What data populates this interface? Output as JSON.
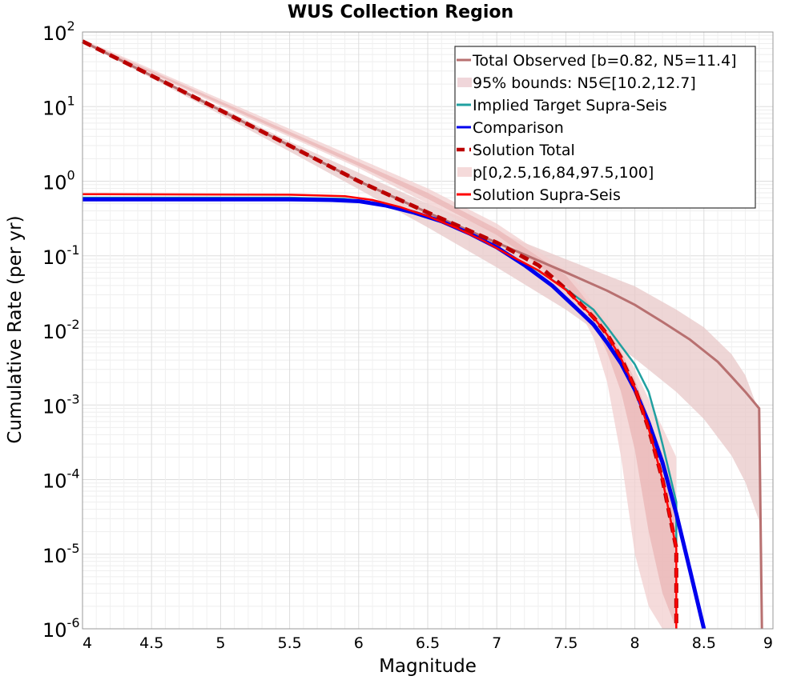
{
  "chart_data": {
    "type": "line",
    "title": "WUS Collection Region",
    "xlabel": "Magnitude",
    "ylabel": "Cumulative Rate (per yr)",
    "xlim": [
      4,
      9
    ],
    "ylim": [
      1e-06,
      100
    ],
    "yscale": "log",
    "grid": true,
    "legend_position": "top-right",
    "x_ticks": [
      "4",
      "4.5",
      "5",
      "5.5",
      "6",
      "6.5",
      "7",
      "7.5",
      "8",
      "8.5",
      "9"
    ],
    "y_ticks": [
      {
        "base": "10",
        "exp": "-6"
      },
      {
        "base": "10",
        "exp": "-5"
      },
      {
        "base": "10",
        "exp": "-4"
      },
      {
        "base": "10",
        "exp": "-3"
      },
      {
        "base": "10",
        "exp": "-2"
      },
      {
        "base": "10",
        "exp": "-1"
      },
      {
        "base": "10",
        "exp": "0"
      },
      {
        "base": "10",
        "exp": "1"
      },
      {
        "base": "10",
        "exp": "2"
      }
    ],
    "bands": [
      {
        "name": "95% bounds: N5∈[10.2,12.7]",
        "color": "#e8c8c8",
        "x": [
          4.0,
          4.5,
          5.0,
          5.5,
          6.0,
          6.5,
          7.0,
          7.5,
          8.0,
          8.3,
          8.5,
          8.7,
          8.8,
          8.9
        ],
        "low": [
          72,
          24,
          7.8,
          2.5,
          0.78,
          0.24,
          0.07,
          0.019,
          0.0042,
          0.0015,
          0.00065,
          0.00021,
          9.2e-05,
          2.8e-05
        ],
        "high": [
          78,
          27,
          9.7,
          3.4,
          1.3,
          0.5,
          0.21,
          0.09,
          0.039,
          0.019,
          0.011,
          0.0048,
          0.0025,
          0.0008
        ]
      },
      {
        "name": "p[0,2.5,16,84,97.5,100]",
        "color": "#f2cfcf",
        "x": [
          4.0,
          6.0,
          6.5,
          7.0,
          7.5,
          7.6,
          7.7,
          7.8,
          7.9,
          8.0,
          8.1,
          8.2,
          8.3
        ],
        "low": [
          70,
          1.5,
          0.5,
          0.16,
          0.03,
          0.018,
          0.008,
          0.002,
          0.0002,
          1e-05,
          2e-06,
          1e-06,
          1e-06
        ],
        "high": [
          80,
          2.0,
          0.8,
          0.27,
          0.065,
          0.04,
          0.023,
          0.013,
          0.007,
          0.003,
          0.0012,
          0.0005,
          0.0002
        ]
      },
      {
        "name": "p[0,2.5,16,84,97.5,100] inner",
        "color": "#eab6b6",
        "x": [
          4.0,
          6.0,
          6.5,
          7.0,
          7.5,
          7.6,
          7.7,
          7.8,
          7.9,
          8.0,
          8.1,
          8.2,
          8.3
        ],
        "low": [
          73,
          1.6,
          0.58,
          0.19,
          0.04,
          0.025,
          0.013,
          0.005,
          0.0015,
          0.00025,
          2e-05,
          3e-06,
          1e-06
        ],
        "high": [
          77,
          1.8,
          0.7,
          0.23,
          0.055,
          0.033,
          0.019,
          0.01,
          0.0052,
          0.0022,
          0.0007,
          0.00022,
          5e-05
        ]
      }
    ],
    "series": [
      {
        "name": "Total Observed [b=0.82, N5=11.4]",
        "color": "#b87070",
        "width": 3,
        "dash": "",
        "x": [
          4.0,
          4.5,
          5.0,
          5.5,
          6.0,
          6.5,
          7.0,
          7.5,
          7.8,
          8.0,
          8.2,
          8.4,
          8.6,
          8.7,
          8.8,
          8.9,
          8.92
        ],
        "y": [
          75,
          26,
          8.9,
          3.0,
          1.0,
          0.38,
          0.15,
          0.06,
          0.034,
          0.022,
          0.013,
          0.0075,
          0.0038,
          0.0024,
          0.0015,
          0.0009,
          1e-06
        ]
      },
      {
        "name": "Implied Target Supra-Seis",
        "color": "#20a0a0",
        "width": 2.5,
        "dash": "",
        "x": [
          4.0,
          5.5,
          5.9,
          6.1,
          6.3,
          6.5,
          6.7,
          6.9,
          7.1,
          7.3,
          7.5,
          7.7,
          7.8,
          7.9,
          8.0,
          8.1,
          8.15,
          8.2,
          8.3,
          8.3
        ],
        "y": [
          0.6,
          0.6,
          0.58,
          0.52,
          0.42,
          0.33,
          0.24,
          0.16,
          0.1,
          0.063,
          0.036,
          0.019,
          0.011,
          0.0062,
          0.0035,
          0.0015,
          0.0007,
          0.0003,
          5e-05,
          1.4e-05
        ]
      },
      {
        "name": "Comparison",
        "color": "#0000ee",
        "width": 5,
        "dash": "",
        "x": [
          4.0,
          5.5,
          5.8,
          6.0,
          6.2,
          6.4,
          6.6,
          6.8,
          7.0,
          7.2,
          7.4,
          7.6,
          7.7,
          7.8,
          7.9,
          8.0,
          8.1,
          8.2,
          8.3,
          8.4,
          8.5
        ],
        "y": [
          0.57,
          0.57,
          0.56,
          0.54,
          0.47,
          0.38,
          0.29,
          0.2,
          0.13,
          0.075,
          0.04,
          0.018,
          0.012,
          0.0068,
          0.0036,
          0.0016,
          0.00058,
          0.00017,
          3.5e-05,
          6e-06,
          1e-06
        ]
      },
      {
        "name": "Solution Total",
        "color": "#bb0000",
        "width": 5,
        "dash": "12,7",
        "x": [
          4.0,
          4.5,
          5.0,
          5.5,
          6.0,
          6.5,
          7.0,
          7.3,
          7.5,
          7.7,
          7.8,
          7.9,
          8.0,
          8.1,
          8.2,
          8.3,
          8.3
        ],
        "y": [
          75,
          26,
          8.9,
          3.0,
          1.0,
          0.38,
          0.15,
          0.075,
          0.036,
          0.015,
          0.0088,
          0.0043,
          0.0017,
          0.00048,
          0.0001,
          1.2e-05,
          1e-06
        ]
      },
      {
        "name": "Solution Supra-Seis",
        "color": "#ff0000",
        "width": 2.5,
        "dash": "",
        "x": [
          4.0,
          5.5,
          5.9,
          6.1,
          6.3,
          6.5,
          6.7,
          6.9,
          7.1,
          7.3,
          7.5,
          7.7,
          7.8,
          7.9,
          8.0,
          8.1,
          8.2,
          8.3,
          8.3
        ],
        "y": [
          0.67,
          0.66,
          0.63,
          0.56,
          0.45,
          0.34,
          0.24,
          0.16,
          0.1,
          0.064,
          0.035,
          0.015,
          0.0087,
          0.0042,
          0.0017,
          0.00048,
          0.0001,
          1.2e-05,
          1e-06
        ]
      }
    ],
    "legend": [
      {
        "label": "Total Observed [b=0.82, N5=11.4]",
        "kind": "line",
        "color": "#b87070",
        "dash": ""
      },
      {
        "label": "95% bounds: N5∈[10.2,12.7]",
        "kind": "patch",
        "color": "#f0d6da",
        "dash": ""
      },
      {
        "label": "Implied Target Supra-Seis",
        "kind": "line",
        "color": "#20a0a0",
        "dash": ""
      },
      {
        "label": "Comparison",
        "kind": "line",
        "color": "#0000ee",
        "dash": ""
      },
      {
        "label": "Solution Total",
        "kind": "line",
        "color": "#bb0000",
        "dash": "10,6"
      },
      {
        "label": "p[0,2.5,16,84,97.5,100]",
        "kind": "patch",
        "color": "#f5dada",
        "dash": ""
      },
      {
        "label": "Solution Supra-Seis",
        "kind": "line",
        "color": "#ff0000",
        "dash": ""
      }
    ]
  }
}
